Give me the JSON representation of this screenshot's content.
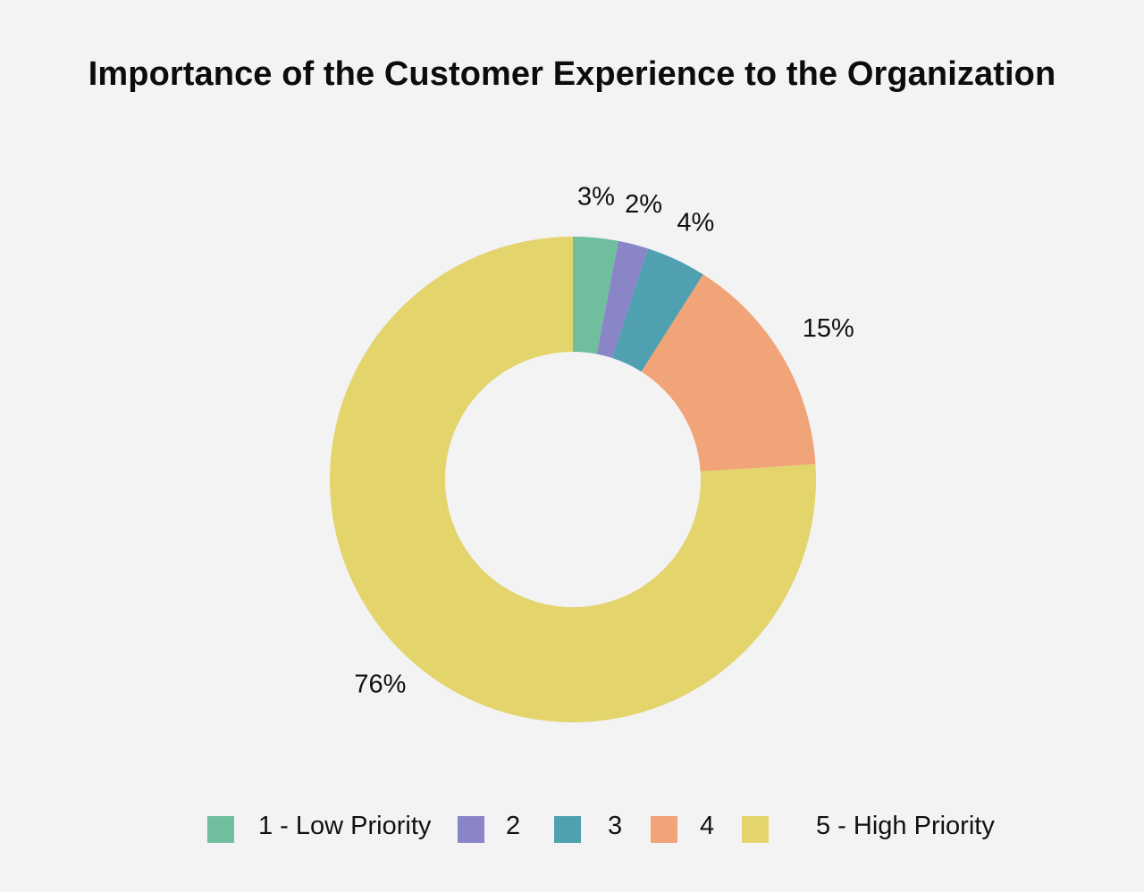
{
  "chart_data": {
    "type": "pie",
    "variant": "donut",
    "title": "Importance of the Customer Experience to the Organization",
    "categories": [
      "1 - Low Priority",
      "2",
      "3",
      "4",
      "5 - High Priority"
    ],
    "values": [
      3,
      2,
      4,
      15,
      76
    ],
    "value_labels": [
      "3%",
      "2%",
      "4%",
      "15%",
      "76%"
    ],
    "colors": [
      "#6fbf9f",
      "#8a85c6",
      "#4fa0b0",
      "#f0a477",
      "#e3d46c"
    ],
    "legend_position": "bottom"
  }
}
